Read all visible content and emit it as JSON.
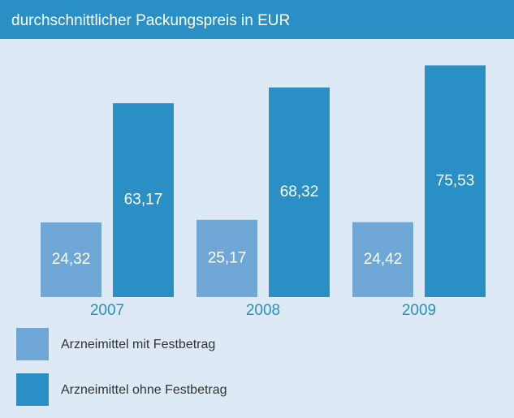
{
  "chart_data": {
    "type": "bar",
    "title": "durchschnittlicher Packungspreis in EUR",
    "categories": [
      "2007",
      "2008",
      "2009"
    ],
    "series": [
      {
        "name": "Arzneimittel mit Festbetrag",
        "color": "#6fa8d6",
        "values": [
          24.32,
          25.17,
          24.42
        ],
        "value_labels": [
          "24,32",
          "25,17",
          "24,42"
        ]
      },
      {
        "name": "Arzneimittel ohne Festbetrag",
        "color": "#2a8fc4",
        "values": [
          63.17,
          68.32,
          75.53
        ],
        "value_labels": [
          "63,17",
          "68,32",
          "75,53"
        ]
      }
    ]
  }
}
